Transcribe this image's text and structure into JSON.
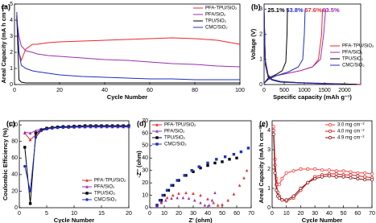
{
  "chart_data": [
    {
      "type": "line",
      "label": "(a)",
      "x_label": "Cycle Number",
      "y_label": "Areal Capacity (mA h cm⁻²)",
      "xlim": [
        0,
        100
      ],
      "xticks": [
        0,
        20,
        40,
        60,
        80,
        100
      ],
      "ylim": [
        0,
        5
      ],
      "yticks": [
        0,
        1,
        2,
        3,
        4,
        5
      ],
      "legend": "upper right",
      "x": [
        1,
        2,
        3,
        5,
        8,
        10,
        15,
        20,
        30,
        40,
        50,
        60,
        70,
        80,
        90,
        100
      ],
      "series": [
        {
          "name": "PFA-TPU/SiO₂",
          "color": "#e8282b",
          "values": [
            4.2,
            2.0,
            1.5,
            2.2,
            2.5,
            2.5,
            2.6,
            2.65,
            2.7,
            2.75,
            2.8,
            2.85,
            2.9,
            2.85,
            2.75,
            2.5
          ]
        },
        {
          "name": "PFA/SiO₂",
          "color": "#9b2fae",
          "values": [
            4.0,
            3.0,
            2.4,
            2.1,
            2.0,
            1.9,
            1.8,
            1.75,
            1.65,
            1.55,
            1.5,
            1.4,
            1.3,
            1.25,
            1.15,
            1.1
          ]
        },
        {
          "name": "TPU/SiO₂",
          "color": "#000000",
          "values": [
            4.3,
            0.3,
            0.15,
            0.1,
            0.1,
            0.1,
            0.1,
            0.1,
            0.1,
            0.1,
            0.1,
            0.1,
            0.1,
            0.1,
            0.1,
            0.1
          ]
        },
        {
          "name": "CMC/SiO₂",
          "color": "#1f2fbf",
          "values": [
            4.5,
            2.0,
            1.2,
            1.0,
            0.85,
            0.8,
            0.7,
            0.6,
            0.5,
            0.45,
            0.4,
            0.35,
            0.35,
            0.3,
            0.3,
            0.3
          ]
        }
      ]
    },
    {
      "type": "line",
      "label": "(b)",
      "x_label": "Specific capacity (mAh g⁻¹)",
      "y_label": "Voltage (V)",
      "xlim": [
        0,
        2400
      ],
      "xticks": [
        0,
        500,
        1000,
        1500,
        2000
      ],
      "ylim": [
        0,
        3.2
      ],
      "yticks": [
        0,
        1,
        2,
        3
      ],
      "legend": "right",
      "annotations": [
        "25.1%",
        "53.8%",
        "57.6%",
        "63.5%"
      ],
      "series": [
        {
          "name": "PFA-TPU/SiO₂",
          "color": "#e8282b",
          "x": [
            0,
            30,
            100,
            200,
            400,
            800,
            1200,
            1600,
            2000,
            2400,
            null,
            0,
            100,
            300,
            600,
            900,
            1200,
            1350,
            1430,
            1450
          ],
          "values": [
            3.0,
            1.0,
            0.4,
            0.2,
            0.12,
            0.08,
            0.06,
            0.04,
            0.02,
            0.01,
            null,
            0.05,
            0.2,
            0.35,
            0.45,
            0.55,
            0.7,
            1.0,
            2.0,
            3.0
          ]
        },
        {
          "name": "PFA/SiO₂",
          "color": "#9b2fae",
          "x": [
            0,
            30,
            100,
            200,
            400,
            800,
            1200,
            1600,
            2000,
            2350,
            null,
            0,
            100,
            300,
            600,
            900,
            1200,
            1400,
            1480,
            1530
          ],
          "values": [
            3.0,
            0.9,
            0.35,
            0.2,
            0.12,
            0.08,
            0.06,
            0.04,
            0.02,
            0.01,
            null,
            0.05,
            0.2,
            0.35,
            0.45,
            0.55,
            0.7,
            1.0,
            2.0,
            3.0
          ]
        },
        {
          "name": "TPU/SiO₂",
          "color": "#000000",
          "x": [
            0,
            30,
            100,
            200,
            400,
            800,
            1200,
            1600,
            2000,
            2300,
            null,
            0,
            100,
            300,
            450,
            540,
            570,
            580
          ],
          "values": [
            3.0,
            0.8,
            0.3,
            0.18,
            0.1,
            0.07,
            0.05,
            0.03,
            0.02,
            0.01,
            null,
            0.05,
            0.25,
            0.4,
            0.55,
            0.9,
            2.0,
            3.0
          ]
        },
        {
          "name": "CMC/SiO₂",
          "color": "#1f2fbf",
          "x": [
            0,
            30,
            100,
            200,
            400,
            800,
            1200,
            1600,
            1900,
            null,
            0,
            100,
            300,
            600,
            850,
            960,
            1000,
            1020
          ],
          "values": [
            3.0,
            0.9,
            0.35,
            0.2,
            0.12,
            0.08,
            0.05,
            0.03,
            0.01,
            null,
            0.05,
            0.2,
            0.35,
            0.5,
            0.7,
            1.0,
            2.0,
            3.0
          ]
        }
      ]
    },
    {
      "type": "line",
      "label": "(c)",
      "x_label": "Cycle Number",
      "y_label": "Coulombic Efficiency (%)",
      "xlim": [
        0,
        20
      ],
      "xticks": [
        0,
        5,
        10,
        15,
        20
      ],
      "ylim": [
        0,
        105
      ],
      "yticks": [
        0,
        20,
        40,
        60,
        80,
        100
      ],
      "legend": "lower right",
      "x": [
        1,
        2,
        3,
        4,
        5,
        6,
        7,
        8,
        9,
        10,
        11,
        12,
        13,
        14,
        15,
        16,
        17,
        18,
        19,
        20
      ],
      "series": [
        {
          "name": "PFA-TPU/SiO₂",
          "color": "#e8282b",
          "marker": "triangle",
          "values": [
            90,
            82,
            88,
            93,
            95,
            96,
            97,
            97,
            97.5,
            98,
            98,
            98,
            98,
            98.5,
            98.5,
            98.5,
            98.5,
            98.5,
            98.5,
            98.5
          ]
        },
        {
          "name": "PFA/SiO₂",
          "color": "#9b2fae",
          "marker": "triangle",
          "values": [
            91,
            90,
            93,
            95,
            96,
            96.5,
            97,
            97,
            97,
            97,
            97.5,
            97.5,
            97.5,
            97.5,
            97.5,
            97.5,
            97.5,
            97.5,
            97.5,
            97.5
          ]
        },
        {
          "name": "TPU/SiO₂",
          "color": "#000000",
          "marker": "square",
          "values": [
            73,
            5,
            90,
            94,
            96,
            97,
            97.5,
            98,
            98,
            98.5,
            98.5,
            99,
            99,
            99,
            99,
            99,
            99,
            99,
            99,
            99
          ]
        },
        {
          "name": "CMC/SiO₂",
          "color": "#1f2fbf",
          "marker": "circle",
          "values": [
            50,
            20,
            85,
            93,
            95,
            96,
            96.5,
            97,
            97,
            97.5,
            97.5,
            97.5,
            98,
            98,
            98,
            98,
            98,
            98,
            98,
            98
          ]
        }
      ]
    },
    {
      "type": "scatter",
      "label": "(d)",
      "x_label": "Z' (ohm)",
      "y_label": "-Z'' (ohm)",
      "xlim": [
        0,
        70
      ],
      "xticks": [
        0,
        10,
        20,
        30,
        40,
        50,
        60,
        70
      ],
      "ylim": [
        0,
        70
      ],
      "yticks": [
        0,
        10,
        20,
        30,
        40,
        50,
        60,
        70
      ],
      "legend": "upper left",
      "series": [
        {
          "name": "PFA-TPU/SiO₂",
          "color": "#e8282b",
          "marker": "triangle",
          "x": [
            5,
            8,
            12,
            16,
            20,
            25,
            30,
            35,
            40,
            44,
            47,
            50,
            54,
            58,
            62,
            65,
            67
          ],
          "values": [
            1,
            5,
            8,
            10,
            11.5,
            12,
            11.5,
            10,
            7,
            4,
            2,
            2.5,
            6,
            11,
            18,
            24,
            30
          ]
        },
        {
          "name": "PFA/SiO₂",
          "color": "#9b2fae",
          "marker": "triangle",
          "x": [
            5,
            8,
            11,
            15,
            19,
            23,
            27,
            31,
            35,
            38,
            41,
            43,
            45
          ],
          "values": [
            1,
            4,
            6,
            7.5,
            8,
            8,
            7.5,
            6,
            4,
            2,
            2,
            6,
            12
          ]
        },
        {
          "name": "TPU/SiO₂",
          "color": "#000000",
          "marker": "square",
          "x": [
            5,
            8,
            10,
            13,
            16,
            20,
            25,
            30,
            35,
            40,
            45,
            50,
            55,
            60
          ],
          "values": [
            2,
            6,
            10,
            14,
            18,
            22,
            26,
            29,
            32,
            34,
            36,
            37,
            39,
            40
          ]
        },
        {
          "name": "CMC/SiO₂",
          "color": "#1f2fbf",
          "marker": "square",
          "x": [
            5,
            7,
            9,
            12,
            15,
            19,
            24,
            29,
            34,
            40,
            46,
            52,
            58,
            63,
            68
          ],
          "values": [
            2,
            6,
            10,
            14,
            18,
            22,
            26,
            30,
            33,
            36,
            39,
            41,
            43,
            45,
            48
          ]
        }
      ]
    },
    {
      "type": "line",
      "label": "(e)",
      "x_label": "Cycle Number",
      "y_label": "Areal Capacity (mA h cm⁻²)",
      "xlim": [
        0,
        70
      ],
      "xticks": [
        0,
        10,
        20,
        30,
        40,
        50,
        60,
        70
      ],
      "ylim": [
        0,
        4.5
      ],
      "yticks": [
        0,
        1,
        2,
        3,
        4
      ],
      "legend": "upper right",
      "x": [
        1,
        2,
        3,
        4,
        5,
        7,
        10,
        15,
        20,
        25,
        30,
        35,
        40,
        45,
        50,
        55,
        60,
        65,
        70
      ],
      "series": [
        {
          "name": "3.0 mg·cm⁻²",
          "color": "#ff3a3a",
          "marker": "open-circle",
          "values": [
            4.2,
            2.5,
            1.5,
            1.2,
            1.2,
            1.5,
            1.8,
            1.9,
            2.0,
            2.0,
            2.0,
            1.95,
            1.95,
            1.9,
            1.9,
            1.85,
            1.8,
            1.8,
            1.75
          ]
        },
        {
          "name": "4.0 mg·cm⁻²",
          "color": "#d01818",
          "marker": "open-circle",
          "values": [
            4.0,
            2.2,
            1.2,
            0.8,
            0.6,
            0.4,
            0.35,
            0.5,
            0.9,
            1.3,
            1.6,
            1.7,
            1.75,
            1.75,
            1.7,
            1.7,
            1.65,
            1.6,
            1.55
          ]
        },
        {
          "name": "4.9 mg·cm⁻²",
          "color": "#8b1010",
          "marker": "open-circle",
          "values": [
            3.8,
            1.8,
            0.9,
            0.6,
            0.5,
            0.4,
            0.4,
            0.6,
            1.0,
            1.3,
            1.5,
            1.6,
            1.65,
            1.6,
            1.6,
            1.55,
            1.5,
            1.45,
            1.45
          ]
        }
      ]
    }
  ]
}
